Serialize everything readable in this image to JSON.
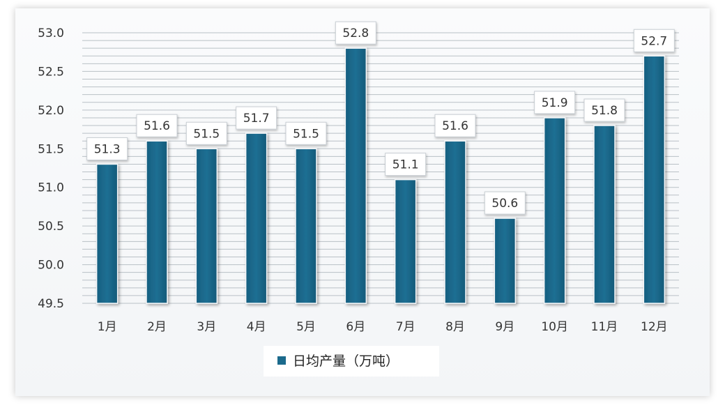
{
  "chart_data": {
    "type": "bar",
    "categories": [
      "1月",
      "2月",
      "3月",
      "4月",
      "5月",
      "6月",
      "7月",
      "8月",
      "9月",
      "10月",
      "11月",
      "12月"
    ],
    "series": [
      {
        "name": "日均产量（万吨）",
        "values": [
          51.3,
          51.6,
          51.5,
          51.7,
          51.5,
          52.8,
          51.1,
          51.6,
          50.6,
          51.9,
          51.8,
          52.7
        ]
      }
    ],
    "data_labels": [
      "51.3",
      "51.6",
      "51.5",
      "51.7",
      "51.5",
      "52.8",
      "51.1",
      "51.6",
      "50.6",
      "51.9",
      "51.8",
      "52.7"
    ],
    "yticks": [
      "49.5",
      "50.0",
      "50.5",
      "51.0",
      "51.5",
      "52.0",
      "52.5",
      "53.0"
    ],
    "ylim": [
      49.5,
      53.0
    ],
    "title": "",
    "xlabel": "",
    "ylabel": "",
    "grid": true,
    "legend_position": "bottom-center",
    "bar_color": "#1b6a8c",
    "grid_color": "#b9c0c6"
  }
}
